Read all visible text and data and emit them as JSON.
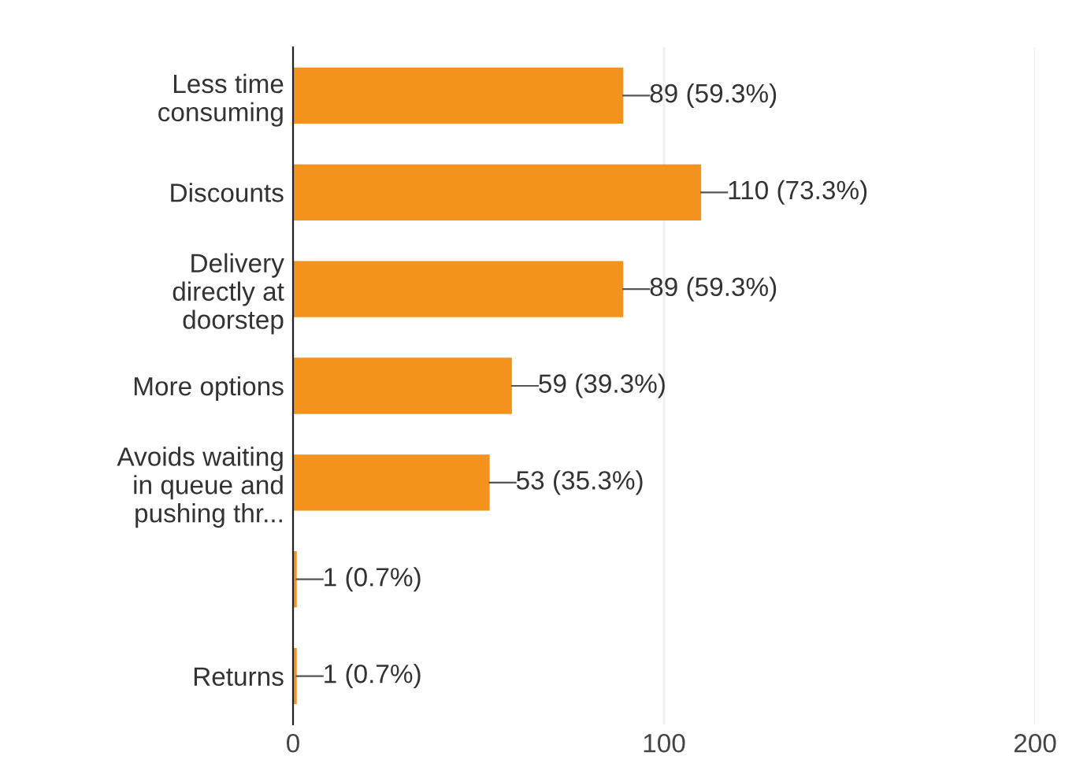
{
  "chart_data": {
    "type": "bar",
    "orientation": "horizontal",
    "categories": [
      "Less time\nconsuming",
      "Discounts",
      "Delivery\ndirectly at\ndoorstep",
      "More options",
      "Avoids waiting\nin queue and\npushing thr...",
      null,
      "Returns"
    ],
    "values": [
      89,
      110,
      89,
      59,
      53,
      1,
      1
    ],
    "value_labels": [
      "89 (59.3%)",
      "110 (73.3%)",
      "89 (59.3%)",
      "59 (39.3%)",
      "53 (35.3%)",
      "1 (0.7%)",
      "1 (0.7%)"
    ],
    "color": "#f4921e",
    "xlim": [
      0,
      200
    ],
    "xticks": [
      0,
      100,
      200
    ],
    "grid": "x"
  }
}
